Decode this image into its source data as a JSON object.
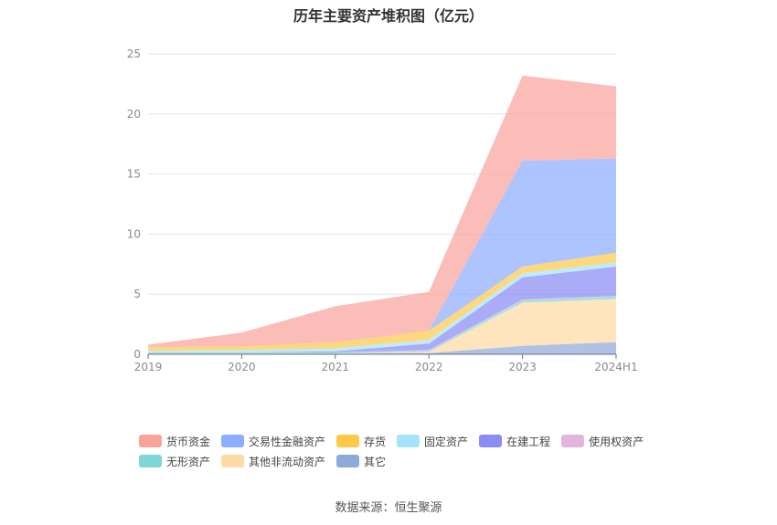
{
  "title": "历年主要资产堆积图（亿元）",
  "source_text": "数据来源：恒生聚源",
  "chart_data": {
    "type": "area",
    "stacked": true,
    "categories": [
      "2019",
      "2020",
      "2021",
      "2022",
      "2023",
      "2024H1"
    ],
    "ylim": [
      0,
      25
    ],
    "yticks": [
      "0",
      "5",
      "10",
      "15",
      "20",
      "25"
    ],
    "grid": true,
    "legend_position": "bottom",
    "series": [
      {
        "name": "其它",
        "color": "#8eaadb",
        "values": [
          0.05,
          0.05,
          0.05,
          0.1,
          0.7,
          1.0
        ]
      },
      {
        "name": "其他非流动资产",
        "color": "#fddba3",
        "values": [
          0.0,
          0.0,
          0.0,
          0.1,
          3.6,
          3.6
        ]
      },
      {
        "name": "无形资产",
        "color": "#7fd6d6",
        "values": [
          0.1,
          0.1,
          0.1,
          0.1,
          0.2,
          0.2
        ]
      },
      {
        "name": "使用权资产",
        "color": "#e3b5dc",
        "values": [
          0.0,
          0.0,
          0.0,
          0.05,
          0.05,
          0.05
        ]
      },
      {
        "name": "在建工程",
        "color": "#8b8cf4",
        "values": [
          0.0,
          0.0,
          0.1,
          0.55,
          1.85,
          2.45
        ]
      },
      {
        "name": "固定资产",
        "color": "#a6e3fa",
        "values": [
          0.15,
          0.2,
          0.25,
          0.3,
          0.35,
          0.35
        ]
      },
      {
        "name": "存货",
        "color": "#fdc949",
        "values": [
          0.3,
          0.3,
          0.5,
          0.75,
          0.55,
          0.8
        ]
      },
      {
        "name": "交易性金融资产",
        "color": "#8dadff",
        "values": [
          0.0,
          0.0,
          0.0,
          0.0,
          8.8,
          7.85
        ]
      },
      {
        "name": "货币资金",
        "color": "#f9a49b",
        "values": [
          0.2,
          1.15,
          3.0,
          3.25,
          7.1,
          6.0
        ]
      }
    ],
    "legend_order": [
      "货币资金",
      "交易性金融资产",
      "存货",
      "固定资产",
      "在建工程",
      "使用权资产",
      "无形资产",
      "其他非流动资产",
      "其它"
    ]
  }
}
